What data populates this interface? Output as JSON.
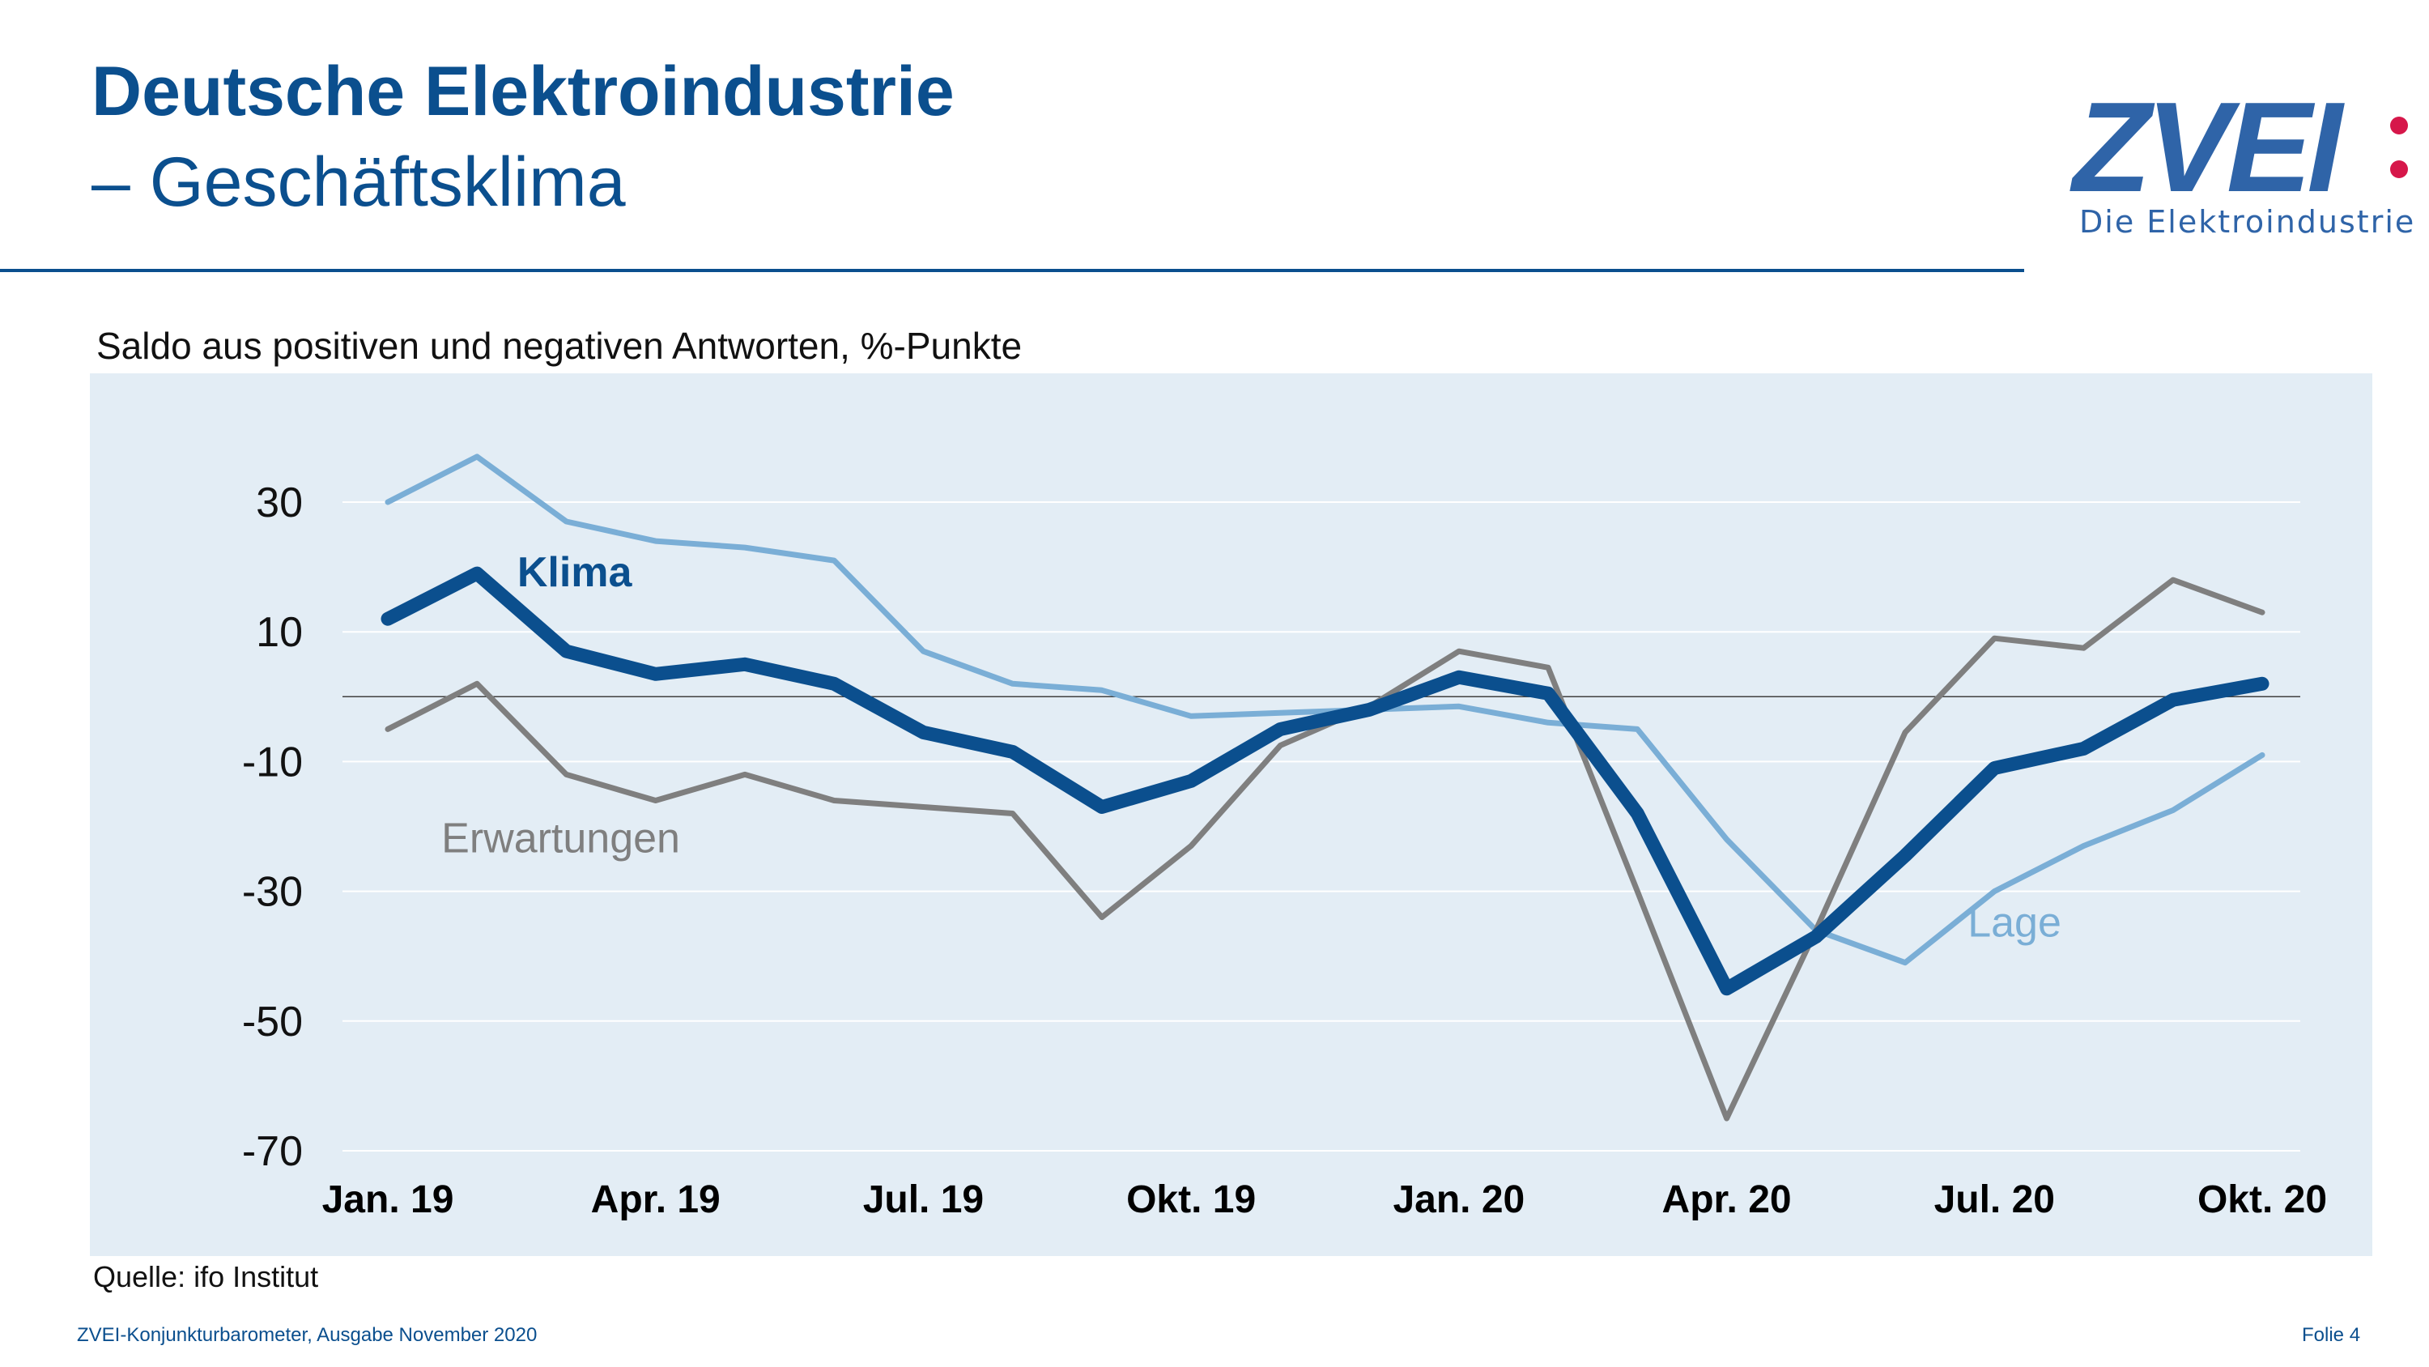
{
  "header": {
    "title_line1": "Deutsche Elektroindustrie",
    "title_line2": "– Geschäftsklima"
  },
  "logo": {
    "wordmark": "ZVEI",
    "tagline": "Die Elektroindustrie",
    "accent_color": "#d6174a",
    "brand_color": "#2f64a8"
  },
  "footer": {
    "source": "Quelle: ifo Institut",
    "publication": "ZVEI-Konjunkturbarometer, Ausgabe November 2020",
    "slide": "Folie 4"
  },
  "colors": {
    "title": "#0b4f8e",
    "panel_background": "#e3edf5"
  },
  "chart_data": {
    "type": "line",
    "subtitle": "Saldo aus positiven und negativen Antworten, %-Punkte",
    "x": [
      "Jan. 19",
      "Feb. 19",
      "Mär. 19",
      "Apr. 19",
      "Mai 19",
      "Jun. 19",
      "Jul. 19",
      "Aug. 19",
      "Sep. 19",
      "Okt. 19",
      "Nov. 19",
      "Dez. 19",
      "Jan. 20",
      "Feb. 20",
      "Mär. 20",
      "Apr. 20",
      "Mai 20",
      "Jun. 20",
      "Jul. 20",
      "Aug. 20",
      "Sep. 20",
      "Okt. 20"
    ],
    "x_tick_labels": [
      "Jan. 19",
      "Apr. 19",
      "Jul. 19",
      "Okt. 19",
      "Jan. 20",
      "Apr. 20",
      "Jul. 20",
      "Okt. 20"
    ],
    "x_tick_indices": [
      0,
      3,
      6,
      9,
      12,
      15,
      18,
      21
    ],
    "y_ticks": [
      30,
      10,
      -10,
      -30,
      -50,
      -70
    ],
    "ylim": [
      -70,
      30
    ],
    "zero_line": true,
    "grid": true,
    "series": [
      {
        "name": "Lage",
        "color": "#7aaed6",
        "values": [
          30,
          37,
          27,
          24,
          23,
          21,
          7,
          2,
          1,
          -3,
          -2.5,
          -2,
          -1.5,
          -4,
          -5,
          -22,
          -36,
          -41,
          -30,
          -23,
          -17.5,
          -9
        ]
      },
      {
        "name": "Erwartungen",
        "color": "#7f7f7f",
        "values": [
          -5,
          2,
          -12,
          -16,
          -12,
          -16,
          -17,
          -18,
          -34,
          -23,
          -7.5,
          -1.5,
          7,
          4.5,
          -30,
          -65,
          -36,
          -5.5,
          9,
          7.5,
          18,
          13
        ]
      },
      {
        "name": "Klima",
        "color": "#0b4f8e",
        "values": [
          12,
          19,
          7,
          3.5,
          5,
          2,
          -5.5,
          -8.5,
          -17,
          -13,
          -5,
          -2,
          3,
          0.5,
          -18,
          -45,
          -37,
          -24.5,
          -11,
          -8,
          -0.5,
          2
        ]
      }
    ]
  }
}
